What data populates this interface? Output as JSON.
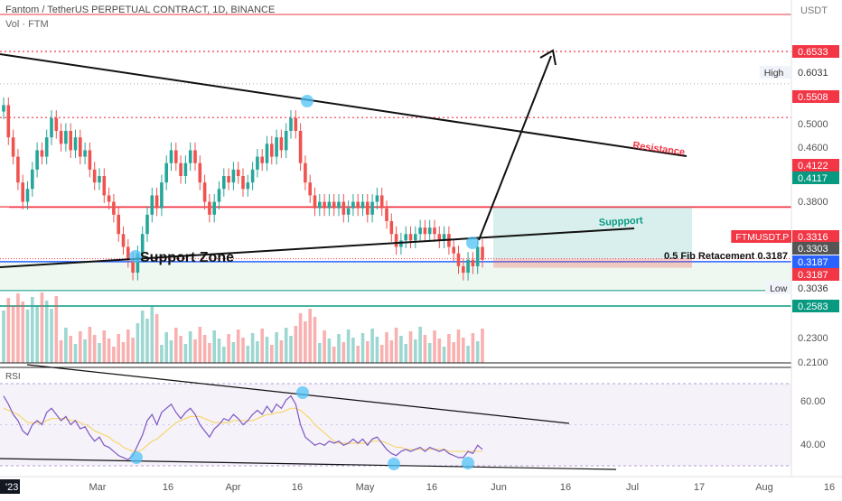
{
  "header": {
    "title": "Fantom / TetherUS PERPETUAL CONTRACT, 1D, BINANCE",
    "volume_label": "Vol · FTM"
  },
  "axis": {
    "currency": "USDT",
    "price_ticks": [
      "0.5000",
      "0.4600",
      "0.3800",
      "0.2300",
      "0.2100"
    ],
    "date_ticks": [
      "'23",
      "Mar",
      "16",
      "Apr",
      "16",
      "May",
      "16",
      "Jun",
      "16",
      "Jul",
      "17",
      "Aug",
      "16"
    ]
  },
  "price_tags": [
    {
      "label": "",
      "value": "0.6533",
      "color": "#f23645"
    },
    {
      "label": "High",
      "value": "0.6031",
      "color": "#ffffff"
    },
    {
      "label": "",
      "value": "0.5508",
      "color": "#f23645"
    },
    {
      "label": "",
      "value": "0.4122",
      "color": "#f23645"
    },
    {
      "label": "",
      "value": "0.4117",
      "color": "#089981"
    },
    {
      "label": "FTMUSDT.P",
      "value": "0.3316",
      "color": "#f23645"
    },
    {
      "label": "",
      "value": "0.3303",
      "color": "#555555"
    },
    {
      "label": "",
      "value": "0.3187",
      "color": "#2962ff"
    },
    {
      "label": "",
      "value": "0.3187",
      "color": "#f23645"
    },
    {
      "label": "Low",
      "value": "0.3036",
      "color": "#ffffff"
    },
    {
      "label": "",
      "value": "0.2583",
      "color": "#089981"
    }
  ],
  "annotations": {
    "resistance": "Resistance",
    "support": "Suppport",
    "support_zone": "Support Zone",
    "fib": "0.5 Fib Retacement 0.3187"
  },
  "rsi": {
    "label": "RSI",
    "ticks": [
      "60.00",
      "40.00"
    ]
  },
  "chart_data": {
    "type": "candlestick",
    "symbol": "FTMUSDT.P",
    "interval": "1D",
    "last": 0.3316,
    "high": 0.6031,
    "low": 0.3036,
    "levels": {
      "red": [
        0.6533,
        0.5508,
        0.4122
      ],
      "green": [
        0.4117,
        0.2583
      ],
      "blue": 0.3187
    },
    "colors": {
      "up": "#26a69a",
      "down": "#ef5350",
      "rsi": "#7e57c2",
      "rsi_ma": "#f5d76e"
    },
    "candles": [
      [
        0.56,
        0.57
      ],
      [
        0.57,
        0.52
      ],
      [
        0.52,
        0.49
      ],
      [
        0.49,
        0.45
      ],
      [
        0.45,
        0.42
      ],
      [
        0.42,
        0.44
      ],
      [
        0.44,
        0.47
      ],
      [
        0.47,
        0.5
      ],
      [
        0.5,
        0.49
      ],
      [
        0.49,
        0.52
      ],
      [
        0.52,
        0.55
      ],
      [
        0.55,
        0.53
      ],
      [
        0.53,
        0.51
      ],
      [
        0.51,
        0.53
      ],
      [
        0.53,
        0.5
      ],
      [
        0.5,
        0.52
      ],
      [
        0.52,
        0.49
      ],
      [
        0.49,
        0.5
      ],
      [
        0.5,
        0.47
      ],
      [
        0.47,
        0.45
      ],
      [
        0.45,
        0.46
      ],
      [
        0.46,
        0.43
      ],
      [
        0.43,
        0.42
      ],
      [
        0.42,
        0.4
      ],
      [
        0.4,
        0.37
      ],
      [
        0.37,
        0.35
      ],
      [
        0.35,
        0.33
      ],
      [
        0.33,
        0.31
      ],
      [
        0.31,
        0.34
      ],
      [
        0.34,
        0.37
      ],
      [
        0.37,
        0.4
      ],
      [
        0.4,
        0.43
      ],
      [
        0.43,
        0.41
      ],
      [
        0.41,
        0.45
      ],
      [
        0.45,
        0.48
      ],
      [
        0.48,
        0.5
      ],
      [
        0.5,
        0.48
      ],
      [
        0.48,
        0.46
      ],
      [
        0.46,
        0.48
      ],
      [
        0.48,
        0.5
      ],
      [
        0.5,
        0.48
      ],
      [
        0.48,
        0.45
      ],
      [
        0.45,
        0.42
      ],
      [
        0.42,
        0.4
      ],
      [
        0.4,
        0.42
      ],
      [
        0.42,
        0.44
      ],
      [
        0.44,
        0.46
      ],
      [
        0.46,
        0.45
      ],
      [
        0.45,
        0.47
      ],
      [
        0.47,
        0.46
      ],
      [
        0.46,
        0.44
      ],
      [
        0.44,
        0.45
      ],
      [
        0.45,
        0.47
      ],
      [
        0.47,
        0.49
      ],
      [
        0.49,
        0.48
      ],
      [
        0.48,
        0.51
      ],
      [
        0.51,
        0.49
      ],
      [
        0.49,
        0.52
      ],
      [
        0.52,
        0.5
      ],
      [
        0.5,
        0.53
      ],
      [
        0.53,
        0.55
      ],
      [
        0.55,
        0.53
      ],
      [
        0.53,
        0.48
      ],
      [
        0.48,
        0.45
      ],
      [
        0.45,
        0.43
      ],
      [
        0.43,
        0.41
      ],
      [
        0.41,
        0.42
      ],
      [
        0.42,
        0.41
      ],
      [
        0.41,
        0.42
      ],
      [
        0.42,
        0.41
      ],
      [
        0.41,
        0.42
      ],
      [
        0.42,
        0.4
      ],
      [
        0.4,
        0.41
      ],
      [
        0.41,
        0.42
      ],
      [
        0.42,
        0.41
      ],
      [
        0.41,
        0.42
      ],
      [
        0.42,
        0.4
      ],
      [
        0.4,
        0.42
      ],
      [
        0.42,
        0.43
      ],
      [
        0.43,
        0.41
      ],
      [
        0.41,
        0.39
      ],
      [
        0.39,
        0.37
      ],
      [
        0.37,
        0.35
      ],
      [
        0.35,
        0.36
      ],
      [
        0.36,
        0.37
      ],
      [
        0.37,
        0.36
      ],
      [
        0.36,
        0.37
      ],
      [
        0.37,
        0.38
      ],
      [
        0.38,
        0.37
      ],
      [
        0.37,
        0.38
      ],
      [
        0.38,
        0.37
      ],
      [
        0.37,
        0.36
      ],
      [
        0.36,
        0.37
      ],
      [
        0.37,
        0.35
      ],
      [
        0.35,
        0.34
      ],
      [
        0.34,
        0.32
      ],
      [
        0.32,
        0.31
      ],
      [
        0.31,
        0.33
      ],
      [
        0.33,
        0.32
      ],
      [
        0.32,
        0.35
      ],
      [
        0.35,
        0.33
      ]
    ],
    "rsi": [
      64,
      60,
      55,
      52,
      47,
      45,
      50,
      52,
      50,
      56,
      58,
      55,
      52,
      54,
      50,
      52,
      48,
      49,
      45,
      42,
      44,
      40,
      39,
      37,
      35,
      34,
      33,
      35,
      40,
      45,
      52,
      55,
      50,
      56,
      58,
      60,
      56,
      53,
      56,
      58,
      55,
      50,
      47,
      44,
      48,
      50,
      53,
      52,
      55,
      53,
      50,
      52,
      55,
      57,
      55,
      59,
      56,
      60,
      58,
      62,
      64,
      60,
      50,
      44,
      42,
      40,
      41,
      40,
      42,
      41,
      42,
      40,
      41,
      43,
      41,
      43,
      40,
      43,
      44,
      41,
      38,
      36,
      35,
      37,
      38,
      37,
      38,
      39,
      37,
      39,
      38,
      37,
      38,
      36,
      35,
      34,
      34,
      37,
      36,
      40,
      38
    ],
    "rsi_ma": [
      58,
      57,
      56,
      55,
      53,
      51,
      51,
      51,
      51,
      52,
      53,
      53,
      53,
      53,
      52,
      52,
      51,
      50,
      49,
      47,
      46,
      45,
      44,
      42,
      41,
      39,
      38,
      37,
      37,
      38,
      40,
      42,
      43,
      45,
      47,
      49,
      51,
      52,
      53,
      54,
      54,
      54,
      53,
      52,
      51,
      51,
      51,
      51,
      52,
      52,
      52,
      52,
      52,
      53,
      54,
      55,
      55,
      56,
      56,
      57,
      58,
      58,
      57,
      55,
      53,
      50,
      48,
      46,
      44,
      42,
      41,
      41,
      41,
      41,
      41,
      41,
      41,
      42,
      42,
      42,
      41,
      40,
      39,
      39,
      38,
      38,
      38,
      38,
      38,
      38,
      38,
      38,
      38,
      37,
      37,
      37,
      37,
      37,
      37,
      37,
      37
    ]
  }
}
